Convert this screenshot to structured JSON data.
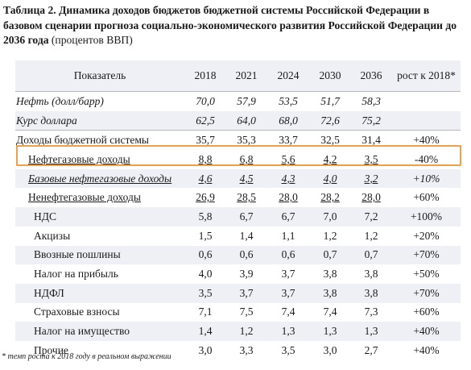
{
  "caption": {
    "bold": "Таблица 2. Динамика доходов бюджетов бюджетной системы Российской Федерации в базовом сценарии прогноза социально-экономического развития Российской Федерации до 2036 года",
    "normal": " (процентов ВВП)"
  },
  "table": {
    "headers": [
      "Показатель",
      "2018",
      "2021",
      "2024",
      "2030",
      "2036",
      "рост к 2018*"
    ],
    "rows": [
      {
        "label": "Нефть (долл/барр)",
        "values": [
          "70,0",
          "57,9",
          "53,5",
          "51,7",
          "58,3",
          ""
        ]
      },
      {
        "label": "Курс доллара",
        "values": [
          "62,5",
          "64,0",
          "68,0",
          "72,6",
          "75,2",
          ""
        ]
      },
      {
        "label": "Доходы бюджетной системы",
        "values": [
          "35,7",
          "35,3",
          "33,7",
          "32,5",
          "31,4",
          "+40%"
        ]
      },
      {
        "label": "Нефтегазовые доходы",
        "values": [
          "8,8",
          "6,8",
          "5,6",
          "4,2",
          "3,5",
          "-40%"
        ]
      },
      {
        "label": "Базовые нефтегазовые доходы",
        "values": [
          "4,6",
          "4,5",
          "4,3",
          "4,0",
          "3,2",
          "+10%"
        ]
      },
      {
        "label": "Ненефтегазовые доходы",
        "values": [
          "26,9",
          "28,5",
          "28,0",
          "28,2",
          "28,0",
          "+60%"
        ]
      },
      {
        "label": "НДС",
        "values": [
          "5,8",
          "6,7",
          "6,7",
          "7,0",
          "7,2",
          "+100%"
        ]
      },
      {
        "label": "Акцизы",
        "values": [
          "1,5",
          "1,4",
          "1,1",
          "1,2",
          "1,2",
          "+20%"
        ]
      },
      {
        "label": "Ввозные пошлины",
        "values": [
          "0,6",
          "0,6",
          "0,6",
          "0,7",
          "0,7",
          "+70%"
        ]
      },
      {
        "label": "Налог на прибыль",
        "values": [
          "4,0",
          "3,9",
          "3,7",
          "3,8",
          "3,8",
          "+50%"
        ]
      },
      {
        "label": "НДФЛ",
        "values": [
          "3,5",
          "3,7",
          "3,7",
          "3,8",
          "3,8",
          "+70%"
        ]
      },
      {
        "label": "Страховые взносы",
        "values": [
          "7,1",
          "7,5",
          "7,4",
          "7,4",
          "7,3",
          "+60%"
        ]
      },
      {
        "label": "Налог на имущество",
        "values": [
          "1,4",
          "1,2",
          "1,3",
          "1,3",
          "1,3",
          "+40%"
        ]
      },
      {
        "label": "Прочие",
        "values": [
          "3,0",
          "3,3",
          "3,5",
          "3,0",
          "2,7",
          "+40%"
        ]
      }
    ]
  },
  "footnote": "* темп роста к 2018 году в реальном выражении",
  "colors": {
    "highlight": "#f0a04b",
    "row_shade": "#eef0f6"
  }
}
